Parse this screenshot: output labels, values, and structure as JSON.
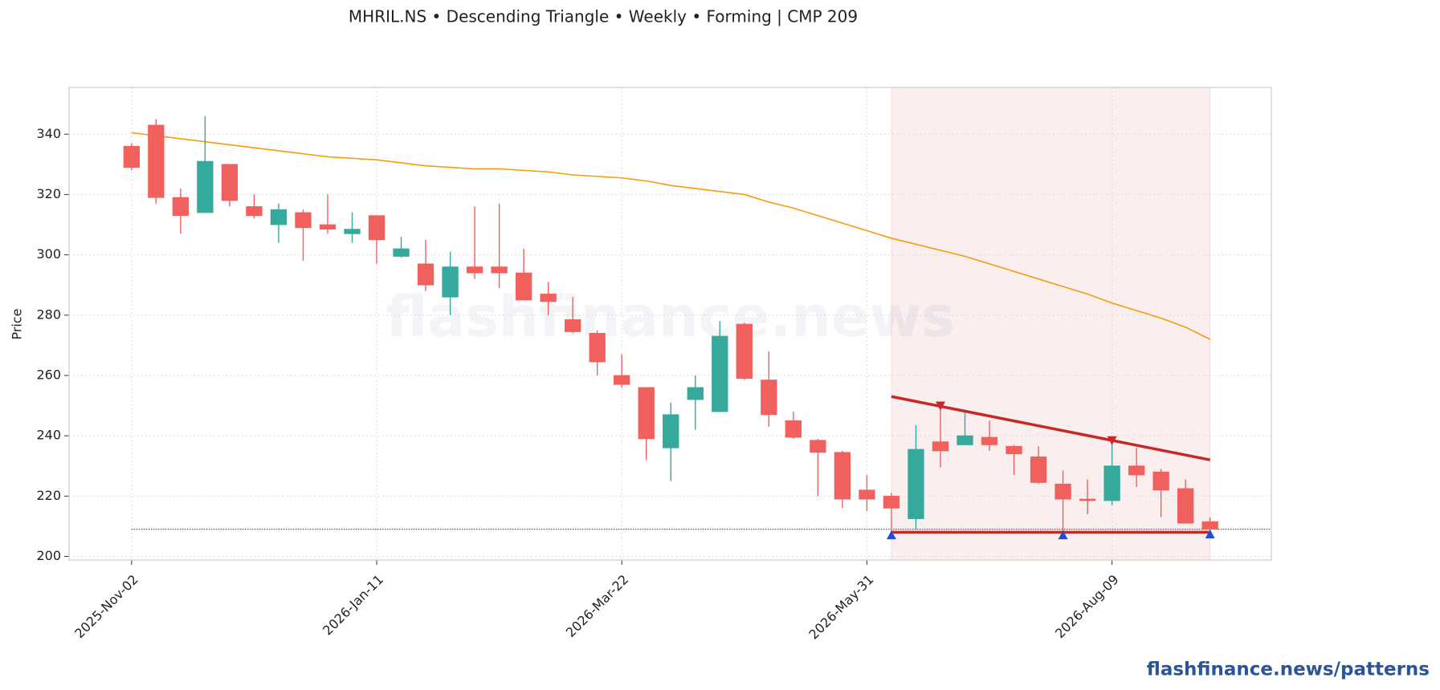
{
  "chart_data": {
    "type": "candlestick",
    "title": "MHRIL.NS  •  Descending Triangle  •  Weekly  •  Forming  |  CMP 209",
    "ylabel": "Price",
    "watermark": "flashfinance.news",
    "footer": "flashfinance.news/patterns",
    "categories": [
      "2025-Nov-02",
      null,
      null,
      null,
      null,
      null,
      null,
      null,
      null,
      null,
      "2026-Jan-11",
      null,
      null,
      null,
      null,
      null,
      null,
      null,
      null,
      null,
      "2026-Mar-22",
      null,
      null,
      null,
      null,
      null,
      null,
      null,
      null,
      null,
      "2026-May-31",
      null,
      null,
      null,
      null,
      null,
      null,
      null,
      null,
      null,
      "2026-Aug-09",
      null,
      null,
      null,
      null
    ],
    "open": [
      336,
      343,
      319,
      314,
      330,
      316,
      310,
      314,
      310,
      307,
      313,
      299.5,
      297,
      286,
      296,
      296,
      294,
      287,
      278.5,
      274,
      260,
      256,
      236,
      252,
      248,
      277,
      258.5,
      245,
      238.5,
      234.5,
      222,
      220,
      212.5,
      238,
      237,
      239.5,
      236.5,
      233,
      224,
      219,
      218.5,
      230,
      228,
      222.5,
      211.5
    ],
    "high": [
      337,
      345,
      322,
      346,
      330,
      320,
      317,
      315,
      320,
      314,
      313,
      306,
      305,
      301,
      316,
      317,
      302,
      291,
      286,
      275,
      267,
      256,
      251,
      260,
      278,
      277.5,
      268,
      248,
      239,
      235,
      227,
      221,
      243.5,
      250,
      248,
      245,
      237,
      236.5,
      228.5,
      225.5,
      238,
      236,
      229,
      225.5,
      213
    ],
    "low": [
      328,
      317,
      307,
      314,
      316,
      312,
      304,
      298,
      307,
      304,
      297,
      299,
      288,
      280,
      292,
      289,
      285,
      280,
      274,
      260,
      256,
      232,
      225,
      242,
      248,
      258.5,
      243,
      239,
      220,
      216,
      215,
      207.5,
      209,
      229.5,
      237,
      235,
      227,
      224,
      208,
      214,
      217,
      223,
      213,
      211,
      208
    ],
    "close": [
      329,
      319,
      313,
      331,
      318,
      313,
      315,
      309,
      308.5,
      308.5,
      305,
      302,
      290,
      296,
      294,
      294,
      285,
      284.5,
      274.5,
      264.5,
      257,
      239,
      247,
      256,
      273,
      259,
      247,
      239.5,
      234.5,
      219,
      219,
      216,
      235.5,
      235,
      240,
      237,
      234,
      224.5,
      219,
      218.5,
      230,
      227,
      222,
      211,
      209
    ],
    "up_color": "#34a99c",
    "down_color": "#f0605d",
    "ma": {
      "color": "#f59c10",
      "values": [
        340.5,
        339.5,
        338.5,
        337.5,
        336.5,
        335.5,
        334.5,
        333.5,
        332.5,
        332,
        331.5,
        330.5,
        329.5,
        329,
        328.5,
        328.5,
        328,
        327.5,
        326.5,
        326,
        325.5,
        324.5,
        323,
        322,
        321,
        320,
        317.5,
        315.5,
        313,
        310.5,
        308,
        305.5,
        303.5,
        301.5,
        299.5,
        297,
        294.5,
        292,
        289.5,
        287,
        284,
        281.5,
        279,
        276,
        272
      ]
    },
    "cmp_line": 209,
    "zone": [
      31,
      44
    ],
    "resistance": {
      "color": "#c62828",
      "x": [
        31,
        44
      ],
      "y": [
        253,
        232
      ]
    },
    "support": {
      "color": "#c62828",
      "x": [
        31,
        44
      ],
      "y": [
        208,
        208
      ]
    },
    "swing_highs": {
      "color": "#c62828",
      "x": [
        33,
        40
      ],
      "y": [
        250,
        238.5
      ]
    },
    "swing_lows": {
      "color": "#1f4fd8",
      "x": [
        31,
        38,
        44
      ],
      "y": [
        207,
        207,
        207.3
      ]
    },
    "xlim": [
      -2.55,
      46.5
    ],
    "ylim": [
      198.8,
      355.5
    ],
    "yticks": [
      200,
      220,
      240,
      260,
      280,
      300,
      320,
      340
    ],
    "grid": true
  }
}
